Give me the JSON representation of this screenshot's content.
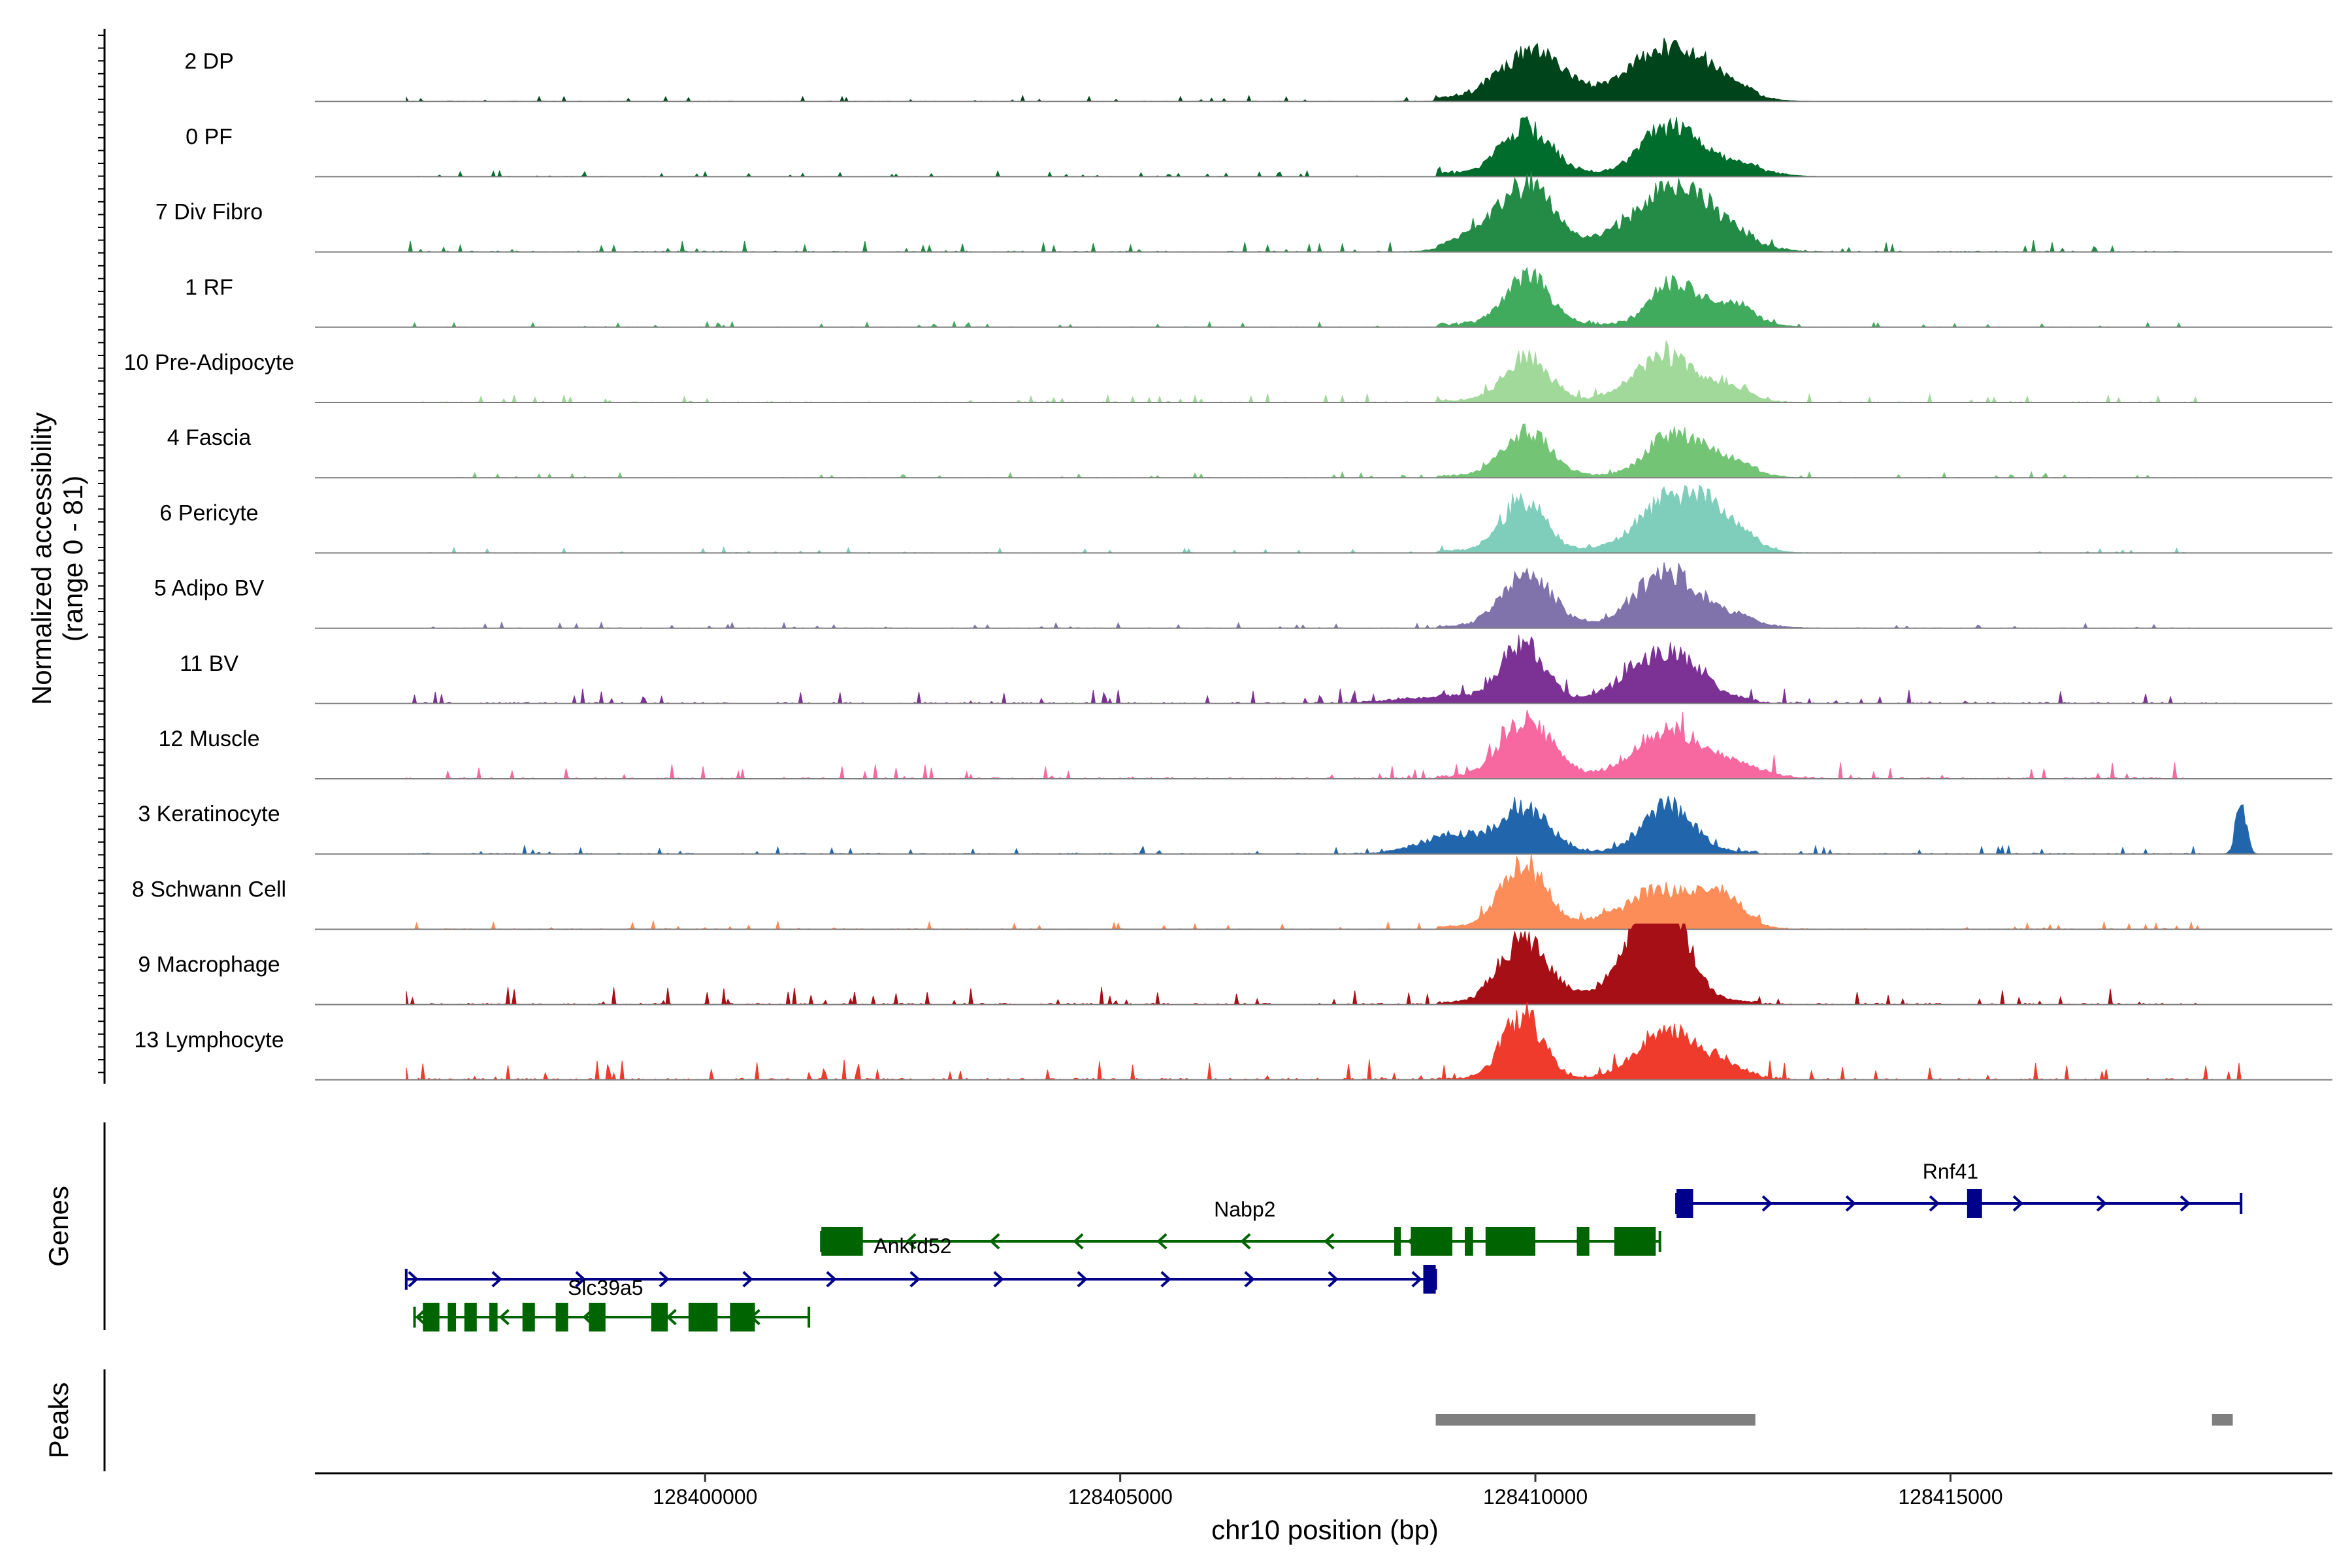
{
  "chart_data": {
    "type": "area",
    "title": "",
    "xlabel": "chr10 position (bp)",
    "ylabel": "Normalized accessibility",
    "ylabel_sub": "(range 0 - 81)",
    "xlim": [
      128395300,
      128419600
    ],
    "ylim": [
      0,
      81
    ],
    "x_ticks": [
      128400000,
      128405000,
      128410000,
      128415000
    ],
    "x_tick_labels": [
      "128400000",
      "128405000",
      "128410000",
      "128415000"
    ],
    "tracks_panel_title": "Genes",
    "peaks_panel_title": "Peaks",
    "tracks": [
      {
        "name": "2 DP",
        "color": "#00441B",
        "peaks": [
          [
            128409950,
            46,
            380
          ],
          [
            128411550,
            44,
            450
          ],
          [
            128412100,
            14,
            400
          ]
        ],
        "baseline": 3,
        "noise": [
          [
            128396400,
            128409000,
            2
          ]
        ]
      },
      {
        "name": "0 PF",
        "color": "#006D2C",
        "peaks": [
          [
            128409900,
            46,
            300
          ],
          [
            128411600,
            44,
            330
          ],
          [
            128412300,
            12,
            400
          ]
        ],
        "baseline": 3,
        "noise": [
          [
            128396400,
            128409000,
            2
          ]
        ]
      },
      {
        "name": "7 Div Fibro",
        "color": "#238B45",
        "peaks": [
          [
            128409900,
            62,
            320
          ],
          [
            128411700,
            60,
            520
          ],
          [
            128409300,
            12,
            300
          ]
        ],
        "baseline": 3,
        "noise": [
          [
            128396400,
            128418000,
            4
          ]
        ]
      },
      {
        "name": "1 RF",
        "color": "#41AB5D",
        "peaks": [
          [
            128409900,
            48,
            260
          ],
          [
            128411650,
            40,
            260
          ],
          [
            128412350,
            20,
            300
          ]
        ],
        "baseline": 3,
        "noise": [
          [
            128396400,
            128418000,
            2
          ]
        ]
      },
      {
        "name": "10 Pre-Adipocyte",
        "color": "#A1D99B",
        "peaks": [
          [
            128409900,
            44,
            260
          ],
          [
            128411550,
            44,
            360
          ],
          [
            128412350,
            12,
            250
          ]
        ],
        "baseline": 2,
        "noise": [
          [
            128396400,
            128418000,
            3
          ]
        ]
      },
      {
        "name": "4 Fascia",
        "color": "#74C476",
        "peaks": [
          [
            128409900,
            44,
            280
          ],
          [
            128411650,
            42,
            300
          ],
          [
            128412300,
            16,
            300
          ]
        ],
        "baseline": 2,
        "noise": [
          [
            128396400,
            128418000,
            2
          ]
        ]
      },
      {
        "name": "6 Pericyte",
        "color": "#7FCDBB",
        "peaks": [
          [
            128409850,
            52,
            260
          ],
          [
            128411700,
            56,
            420
          ],
          [
            128412300,
            18,
            300
          ]
        ],
        "baseline": 2,
        "noise": [
          [
            128396400,
            128418000,
            2
          ]
        ]
      },
      {
        "name": "5 Adipo BV",
        "color": "#8073AC",
        "peaks": [
          [
            128409900,
            52,
            300
          ],
          [
            128411550,
            50,
            360
          ],
          [
            128412200,
            12,
            400
          ]
        ],
        "baseline": 2,
        "noise": [
          [
            128396400,
            128418000,
            2
          ]
        ]
      },
      {
        "name": "11 BV",
        "color": "#7B3294",
        "peaks": [
          [
            128409850,
            58,
            260
          ],
          [
            128411550,
            50,
            420
          ],
          [
            128408800,
            6,
            500
          ]
        ],
        "baseline": 2,
        "noise": [
          [
            128396400,
            128418500,
            5
          ]
        ]
      },
      {
        "name": "12 Muscle",
        "color": "#F768A1",
        "peaks": [
          [
            128409900,
            56,
            300
          ],
          [
            128411550,
            44,
            380
          ],
          [
            128412300,
            14,
            400
          ]
        ],
        "baseline": 2,
        "noise": [
          [
            128396400,
            128418000,
            6
          ]
        ]
      },
      {
        "name": "3 Keratinocyte",
        "color": "#2166AC",
        "peaks": [
          [
            128409900,
            42,
            280
          ],
          [
            128411600,
            46,
            300
          ],
          [
            128409000,
            18,
            400
          ],
          [
            128418500,
            55,
            60
          ]
        ],
        "baseline": 2,
        "noise": [
          [
            128396400,
            128418000,
            3
          ]
        ]
      },
      {
        "name": "8 Schwann Cell",
        "color": "#FC8D59",
        "peaks": [
          [
            128409850,
            60,
            280
          ],
          [
            128411550,
            36,
            500
          ],
          [
            128412250,
            22,
            250
          ]
        ],
        "baseline": 2,
        "noise": [
          [
            128396400,
            128418000,
            3
          ]
        ]
      },
      {
        "name": "9 Macrophage",
        "color": "#A50F15",
        "peaks": [
          [
            128409850,
            62,
            280
          ],
          [
            128411300,
            56,
            260
          ],
          [
            128411650,
            64,
            240
          ],
          [
            128411200,
            14,
            600
          ]
        ],
        "baseline": 2,
        "noise": [
          [
            128396400,
            128418000,
            6
          ]
        ]
      },
      {
        "name": "13 Lymphocyte",
        "color": "#EF3B2C",
        "peaks": [
          [
            128409850,
            64,
            240
          ],
          [
            128411550,
            46,
            340
          ],
          [
            128412200,
            16,
            300
          ]
        ],
        "baseline": 1,
        "noise": [
          [
            128396400,
            128418500,
            7
          ]
        ]
      }
    ],
    "genes": [
      {
        "name": "Rnf41",
        "strand": "+",
        "row": 0,
        "start": 128411700,
        "end": 128418500,
        "exons": [
          [
            128411700,
            128411900
          ],
          [
            128415200,
            128415380
          ]
        ],
        "color": "#00008B",
        "label_x": 128415000
      },
      {
        "name": "Nabp2",
        "strand": "-",
        "row": 1,
        "start": 128401400,
        "end": 128411500,
        "exons": [
          [
            128401400,
            128401900
          ],
          [
            128408300,
            128408380
          ],
          [
            128408500,
            128409000
          ],
          [
            128409150,
            128409250
          ],
          [
            128409400,
            128410000
          ],
          [
            128410500,
            128410650
          ],
          [
            128410950,
            128411450
          ]
        ],
        "color": "#006400",
        "label_x": 128406500
      },
      {
        "name": "Ankrd52",
        "strand": "-",
        "row": 1,
        "start": 128401400,
        "end": 128401900,
        "exons": [],
        "color": "#006400",
        "label_x": 128402500
      },
      {
        "name": "Slc39a5",
        "strand": "+",
        "row": 2,
        "start": 128396400,
        "end": 128408800,
        "exons": [
          [
            128408650,
            128408800
          ]
        ],
        "color": "#00008B",
        "label_x": 128398800
      },
      {
        "name": "",
        "strand": "-",
        "row": 3,
        "start": 128396500,
        "end": 128401250,
        "exons": [
          [
            128396600,
            128396800
          ],
          [
            128396900,
            128397000
          ],
          [
            128397100,
            128397250
          ],
          [
            128397400,
            128397500
          ],
          [
            128397800,
            128397950
          ],
          [
            128398200,
            128398350
          ],
          [
            128398600,
            128398800
          ],
          [
            128399350,
            128399550
          ],
          [
            128399800,
            128400150
          ],
          [
            128400300,
            128400600
          ]
        ],
        "color": "#006400",
        "label_x": 0
      }
    ],
    "peaks": [
      [
        128408800,
        128412650
      ],
      [
        128418150,
        128418400
      ]
    ]
  }
}
